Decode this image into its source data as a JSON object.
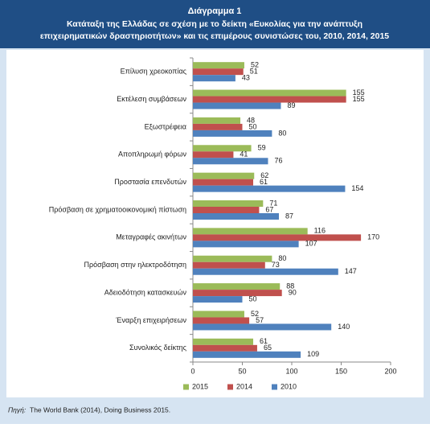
{
  "chart_data": {
    "type": "hbar",
    "title": "Διάγραμμα 1",
    "subtitle": [
      "Κατάταξη της Ελλάδας σε σχέση με το δείκτη «Ευκολίας για την ανάπτυξη",
      "επιχειρηματικών δραστηριοτήτων» και τις επιμέρους συνιστώσες του, 2010, 2014, 2015"
    ],
    "categories": [
      "Επίλυση χρεοκοπίας",
      "Εκτέλεση συμβάσεων",
      "Εξωστρέφεια",
      "Αποπληρωμή φόρων",
      "Προστασία επενδυτών",
      "Πρόσβαση σε χρηματοοικονομική πίστωση",
      "Μεταγραφές ακινήτων",
      "Πρόσβαση στην ηλεκτροδότηση",
      "Αδειοδότηση κατασκευών",
      "Έναρξη επιχειρήσεων",
      "Συνολικός δείκτης"
    ],
    "series": [
      {
        "name": "2015",
        "color": "#9bbb59",
        "values": [
          52,
          155,
          48,
          59,
          62,
          71,
          116,
          80,
          88,
          52,
          61
        ]
      },
      {
        "name": "2014",
        "color": "#c0504d",
        "values": [
          51,
          155,
          50,
          41,
          61,
          67,
          170,
          73,
          90,
          57,
          65
        ]
      },
      {
        "name": "2010",
        "color": "#4f81bd",
        "values": [
          43,
          89,
          80,
          76,
          154,
          87,
          107,
          147,
          50,
          140,
          109
        ]
      }
    ],
    "xlim": [
      0,
      200
    ],
    "xticks": [
      0,
      50,
      100,
      150,
      200
    ],
    "legend": "bottom",
    "source_label": "Πηγή:",
    "source": "The World Bank (2014), Doing Business 2015."
  }
}
